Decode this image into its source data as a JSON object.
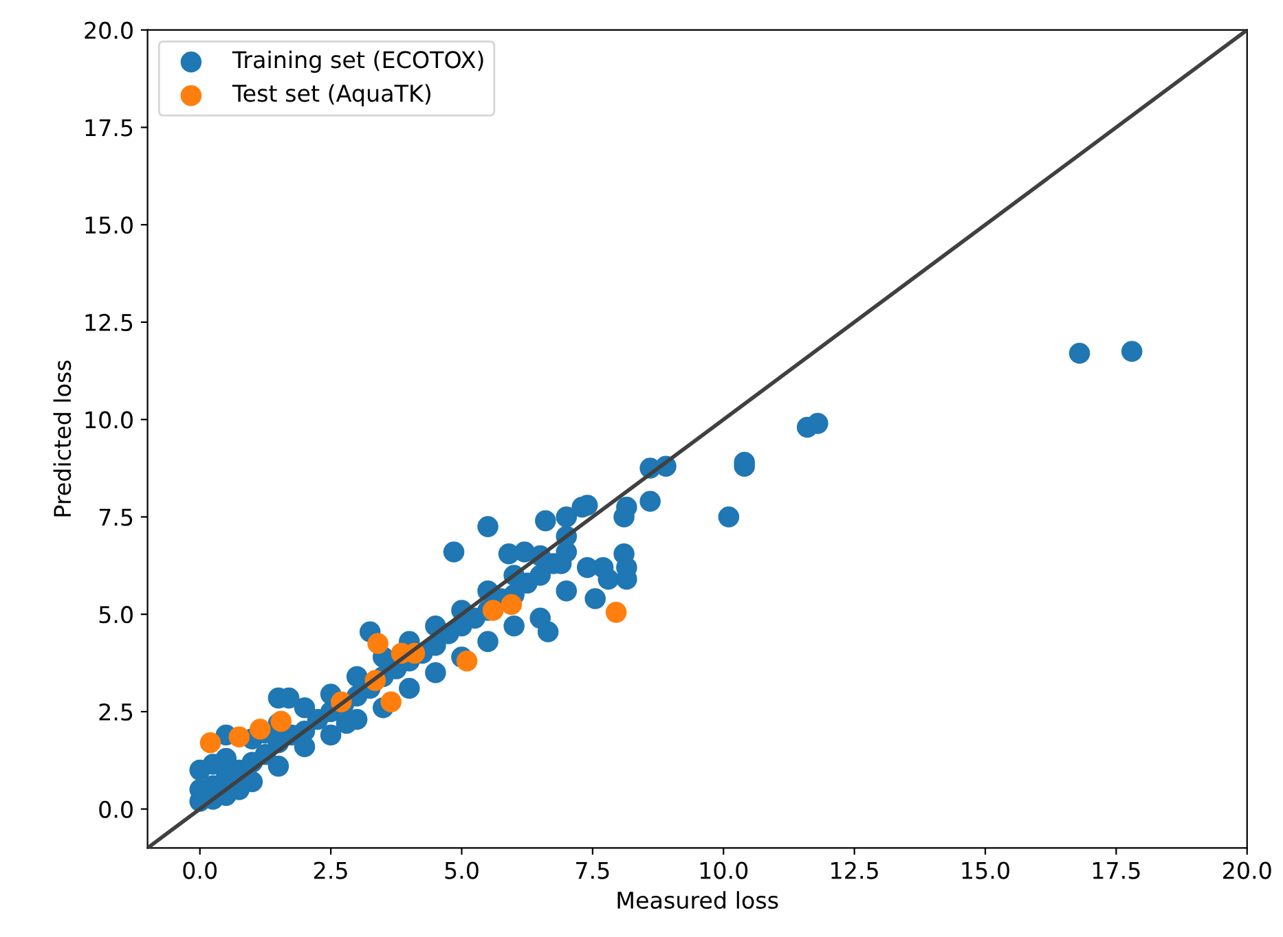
{
  "chart_data": {
    "type": "scatter",
    "xlabel": "Measured loss",
    "ylabel": "Predicted loss",
    "xlim": [
      -1,
      20
    ],
    "ylim": [
      -1,
      20
    ],
    "xticks": [
      {
        "value": 0,
        "label": "0.0"
      },
      {
        "value": 2.5,
        "label": "2.5"
      },
      {
        "value": 5,
        "label": "5.0"
      },
      {
        "value": 7.5,
        "label": "7.5"
      },
      {
        "value": 10,
        "label": "10.0"
      },
      {
        "value": 12.5,
        "label": "12.5"
      },
      {
        "value": 15,
        "label": "15.0"
      },
      {
        "value": 17.5,
        "label": "17.5"
      },
      {
        "value": 20,
        "label": "20.0"
      }
    ],
    "yticks": [
      {
        "value": 0,
        "label": "0.0"
      },
      {
        "value": 2.5,
        "label": "2.5"
      },
      {
        "value": 5,
        "label": "5.0"
      },
      {
        "value": 7.5,
        "label": "7.5"
      },
      {
        "value": 10,
        "label": "10.0"
      },
      {
        "value": 12.5,
        "label": "12.5"
      },
      {
        "value": 15,
        "label": "15.0"
      },
      {
        "value": 17.5,
        "label": "17.5"
      },
      {
        "value": 20,
        "label": "20.0"
      }
    ],
    "legend": "top left",
    "grid": false,
    "marker": "circle",
    "series": [
      {
        "name": "Training set (ECOTOX)",
        "color": "#1f77b4",
        "x": [
          0,
          0.25,
          0.5,
          0.75,
          1.0,
          1.25,
          1.5,
          1.75,
          2.0,
          2.25,
          2.5,
          2.75,
          3.0,
          3.25,
          3.5,
          3.75,
          4.0,
          4.25,
          4.5,
          4.75,
          5.0,
          5.25,
          5.5,
          5.75,
          6.0,
          6.25,
          6.5,
          6.75,
          7.0,
          0,
          0.25,
          0.5,
          1.0,
          1.25,
          1.5,
          2.0,
          2.5,
          3.0,
          3.5,
          4.0,
          4.5,
          5.0,
          5.5,
          6.0,
          6.5,
          7.0,
          0,
          0.25,
          0.5,
          0.75,
          1.0,
          1.5,
          2.0,
          2.5,
          3.0,
          3.5,
          4.0,
          4.5,
          5.0,
          5.5,
          6.0,
          6.5,
          7.0,
          16.8,
          17.8,
          11.6,
          11.8,
          10.4,
          10.4,
          10.1,
          8.6,
          8.9,
          8.6,
          8.15,
          8.1,
          8.1,
          8.15,
          7.7,
          7.8,
          8.15,
          7.55,
          7.4,
          6.65,
          4.85,
          5.5,
          6.6,
          5.9,
          6.2,
          7.0,
          7.3,
          7.4,
          6.9,
          3.25,
          2.8,
          1.5,
          1.7,
          0.5
        ],
        "values": [
          0.5,
          0.6,
          0.8,
          1.0,
          1.2,
          1.4,
          1.7,
          1.9,
          2.0,
          2.3,
          2.5,
          2.7,
          2.9,
          3.1,
          3.4,
          3.6,
          3.8,
          4.0,
          4.2,
          4.5,
          4.7,
          4.9,
          5.1,
          5.4,
          5.5,
          5.8,
          6.0,
          6.3,
          6.6,
          1.0,
          1.15,
          1.3,
          1.8,
          1.95,
          2.2,
          2.6,
          2.95,
          3.4,
          3.9,
          4.3,
          4.7,
          5.1,
          5.6,
          6.0,
          6.5,
          7.0,
          0.2,
          0.25,
          0.35,
          0.5,
          0.7,
          1.1,
          1.6,
          1.9,
          2.3,
          2.6,
          3.1,
          3.5,
          3.9,
          4.3,
          4.7,
          4.9,
          5.6,
          11.7,
          11.75,
          9.8,
          9.9,
          8.8,
          8.9,
          7.5,
          8.75,
          8.8,
          7.9,
          7.75,
          7.5,
          6.55,
          6.2,
          6.2,
          5.9,
          5.9,
          5.4,
          6.2,
          4.55,
          6.6,
          7.25,
          7.4,
          6.55,
          6.6,
          7.5,
          7.75,
          7.8,
          6.3,
          4.55,
          2.2,
          2.85,
          2.85,
          1.9
        ]
      },
      {
        "name": "Test set (AquaTK)",
        "color": "#ff7f0e",
        "x": [
          0.2,
          0.75,
          1.15,
          1.55,
          2.7,
          3.35,
          3.4,
          3.65,
          3.85,
          4.1,
          5.1,
          5.6,
          5.95,
          7.95
        ],
        "values": [
          1.7,
          1.85,
          2.05,
          2.25,
          2.75,
          3.3,
          4.25,
          2.75,
          4.0,
          4.0,
          3.8,
          5.1,
          5.25,
          5.05
        ]
      },
      {
        "type": "line",
        "marker": "none",
        "color": "#404040",
        "x": [
          -1,
          20
        ],
        "values": [
          -1,
          20
        ]
      }
    ]
  }
}
